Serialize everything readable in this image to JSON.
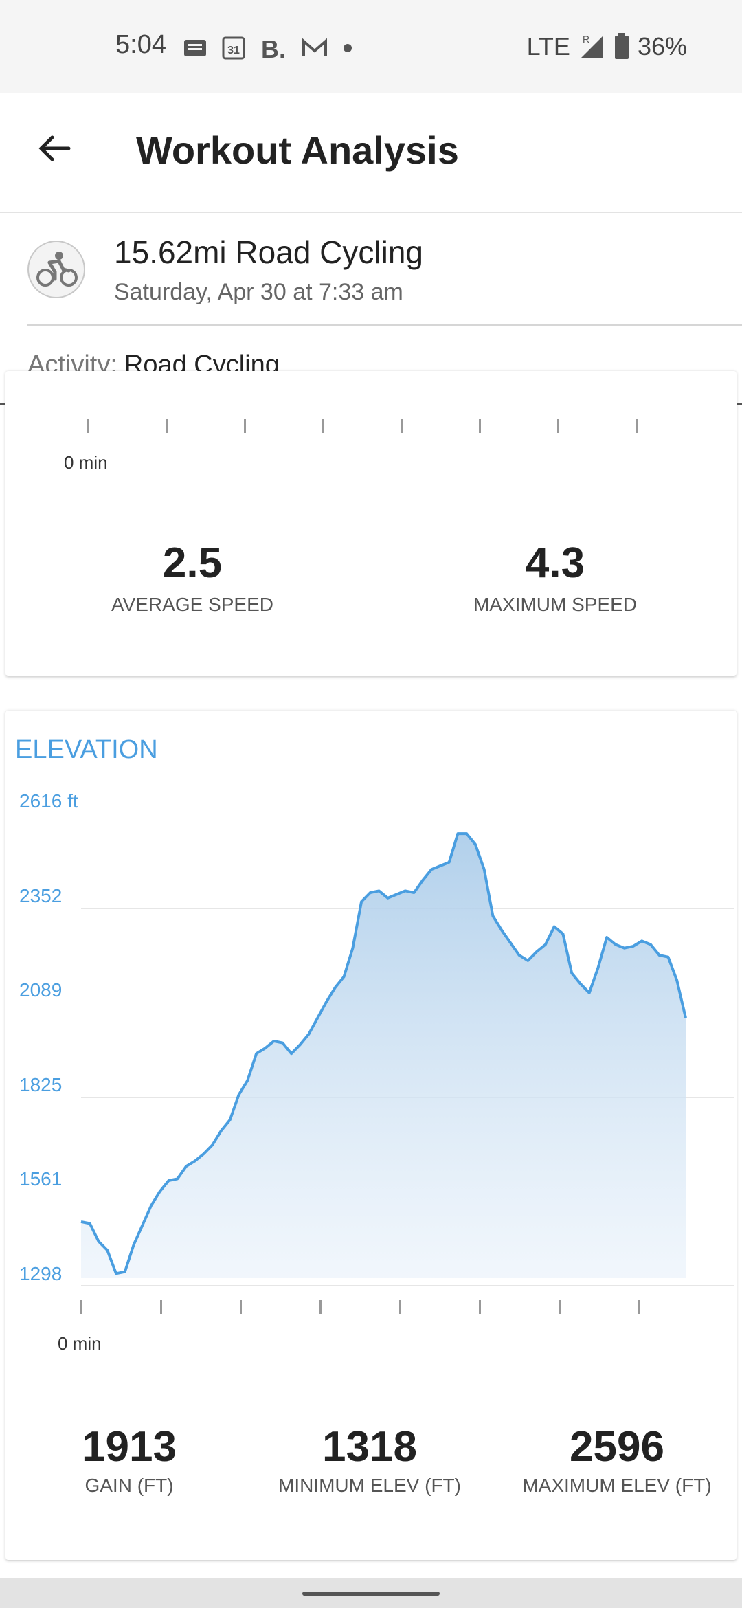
{
  "status_bar": {
    "time": "5:04",
    "network": "LTE",
    "roaming": "R",
    "battery": "36%",
    "icons": [
      "message-icon",
      "calendar-icon",
      "booking-icon",
      "gmail-icon",
      "dot-icon"
    ]
  },
  "app_bar": {
    "title": "Workout Analysis"
  },
  "workout": {
    "title": "15.62mi Road Cycling",
    "date": "Saturday, Apr 30 at 7:33 am",
    "activity_label": "Activity:",
    "activity_value": "Road Cycling"
  },
  "speed_card": {
    "min_label": "0 min",
    "avg_value": "2.5",
    "avg_label": "AVERAGE SPEED",
    "max_value": "4.3",
    "max_label": "MAXIMUM SPEED"
  },
  "elevation_card": {
    "title": "ELEVATION",
    "min_label": "0 min",
    "stats": [
      {
        "value": "1913",
        "label": "GAIN (FT)"
      },
      {
        "value": "1318",
        "label": "MINIMUM ELEV (FT)"
      },
      {
        "value": "2596",
        "label": "MAXIMUM ELEV (FT)"
      }
    ]
  },
  "colors": {
    "accent": "#4a9ee0",
    "fill": "#bcd7ee"
  },
  "chart_data": {
    "type": "area",
    "title": "ELEVATION",
    "xlabel": "",
    "ylabel": "",
    "yticks": [
      "2616 ft",
      "2352",
      "2089",
      "1825",
      "1561",
      "1298"
    ],
    "ylim": [
      1298,
      2616
    ],
    "x_tick_count": 8,
    "x_tick_label": "0 min",
    "series": [
      {
        "values": [
          1475,
          1470,
          1420,
          1395,
          1330,
          1335,
          1410,
          1465,
          1520,
          1560,
          1590,
          1595,
          1630,
          1645,
          1665,
          1690,
          1730,
          1760,
          1830,
          1870,
          1945,
          1960,
          1980,
          1975,
          1945,
          1970,
          2000,
          2045,
          2090,
          2130,
          2160,
          2240,
          2370,
          2395,
          2400,
          2380,
          2390,
          2400,
          2395,
          2430,
          2460,
          2470,
          2480,
          2560,
          2560,
          2530,
          2460,
          2330,
          2290,
          2255,
          2220,
          2205,
          2230,
          2250,
          2300,
          2280,
          2170,
          2140,
          2115,
          2185,
          2270,
          2250,
          2240,
          2245,
          2260,
          2250,
          2220,
          2215,
          2150,
          2045
        ]
      }
    ]
  }
}
